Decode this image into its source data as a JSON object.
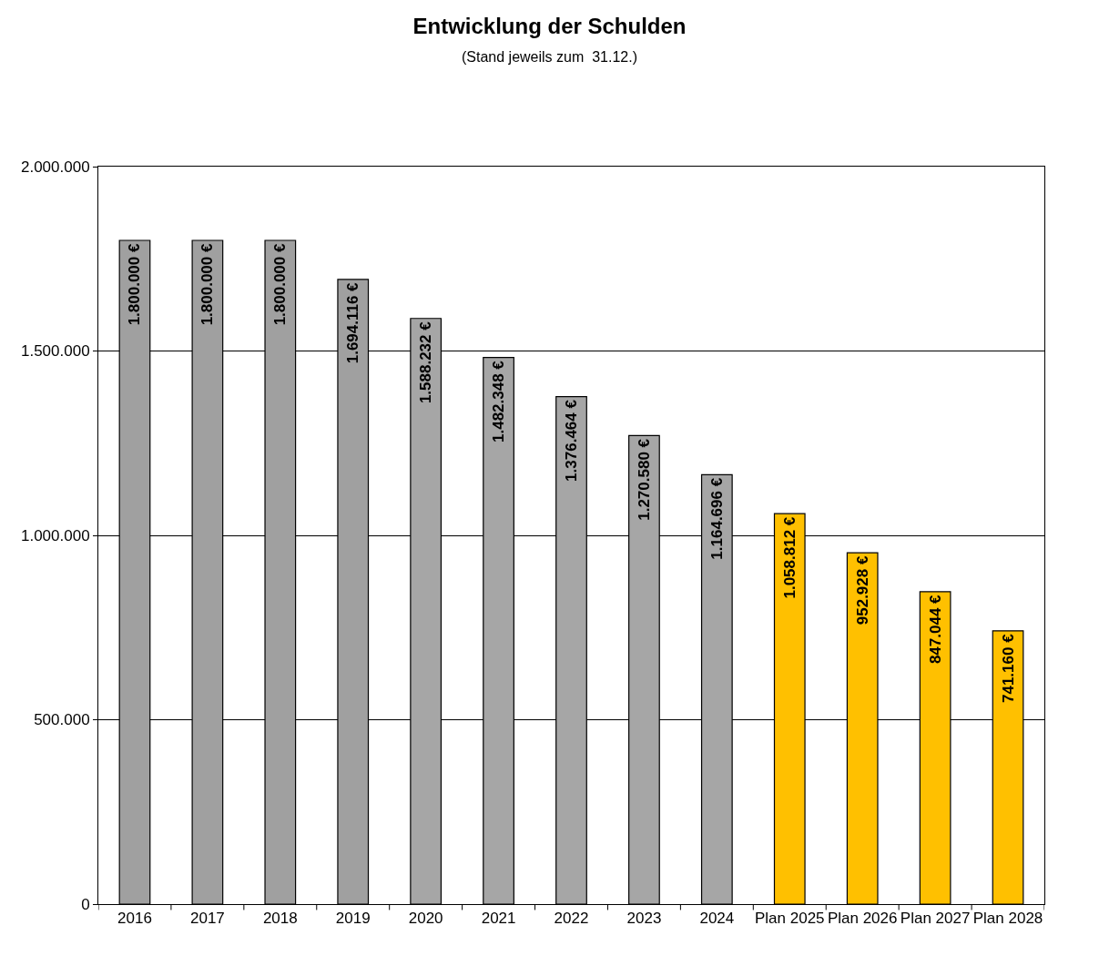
{
  "chart_data": {
    "type": "bar",
    "title": "Entwicklung der Schulden",
    "subtitle": "(Stand jeweils zum  31.12.)",
    "categories": [
      "2016",
      "2017",
      "2018",
      "2019",
      "2020",
      "2021",
      "2022",
      "2023",
      "2024",
      "Plan 2025",
      "Plan 2026",
      "Plan 2027",
      "Plan 2028"
    ],
    "values": [
      1800000,
      1800000,
      1800000,
      1694116,
      1588232,
      1482348,
      1376464,
      1270580,
      1164696,
      1058812,
      952928,
      847044,
      741160
    ],
    "colors": [
      "#a0a0a0",
      "#a0a0a0",
      "#a0a0a0",
      "#a0a0a0",
      "#a6a6a6",
      "#a6a6a6",
      "#a6a6a6",
      "#a6a6a6",
      "#a6a6a6",
      "#ffc000",
      "#ffc000",
      "#ffc000",
      "#ffc000"
    ],
    "value_labels": [
      "1.800.000 €",
      "1.800.000 €",
      "1.800.000 €",
      "1.694.116 €",
      "1.588.232 €",
      "1.482.348 €",
      "1.376.464 €",
      "1.270.580 €",
      "1.164.696 €",
      "1.058.812 €",
      "952.928 €",
      "847.044 €",
      "741.160 €"
    ],
    "ylim": [
      0,
      2000000
    ],
    "yticks": [
      {
        "value": 0,
        "label": "0"
      },
      {
        "value": 500000,
        "label": "500.000"
      },
      {
        "value": 1000000,
        "label": "1.000.000"
      },
      {
        "value": 1500000,
        "label": "1.500.000"
      },
      {
        "value": 2000000,
        "label": "2.000.000"
      }
    ],
    "grid": "y"
  }
}
